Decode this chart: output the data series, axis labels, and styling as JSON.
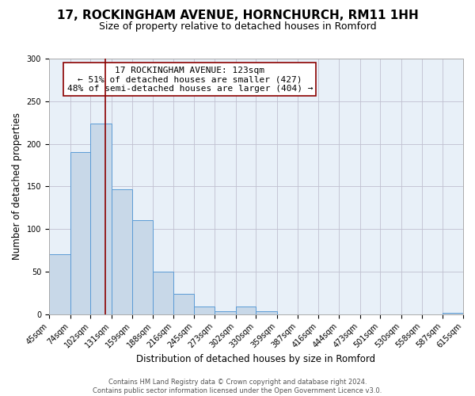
{
  "title": "17, ROCKINGHAM AVENUE, HORNCHURCH, RM11 1HH",
  "subtitle": "Size of property relative to detached houses in Romford",
  "xlabel": "Distribution of detached houses by size in Romford",
  "ylabel": "Number of detached properties",
  "bar_color": "#c8d8e8",
  "bar_edge_color": "#5b9bd5",
  "background_color": "#ffffff",
  "grid_color": "#c0c0d0",
  "vline_color": "#8b0000",
  "vline_x": 123,
  "annotation_line1": "17 ROCKINGHAM AVENUE: 123sqm",
  "annotation_line2": "← 51% of detached houses are smaller (427)",
  "annotation_line3": "48% of semi-detached houses are larger (404) →",
  "annotation_box_color": "#ffffff",
  "annotation_box_edge": "#8b0000",
  "bin_edges": [
    45,
    74,
    102,
    131,
    159,
    188,
    216,
    245,
    273,
    302,
    330,
    359,
    387,
    416,
    444,
    473,
    501,
    530,
    558,
    587,
    615
  ],
  "bar_heights": [
    70,
    190,
    224,
    147,
    110,
    50,
    24,
    9,
    4,
    9,
    4,
    0,
    0,
    0,
    0,
    0,
    0,
    0,
    0,
    2
  ],
  "tick_labels": [
    "45sqm",
    "74sqm",
    "102sqm",
    "131sqm",
    "159sqm",
    "188sqm",
    "216sqm",
    "245sqm",
    "273sqm",
    "302sqm",
    "330sqm",
    "359sqm",
    "387sqm",
    "416sqm",
    "444sqm",
    "473sqm",
    "501sqm",
    "530sqm",
    "558sqm",
    "587sqm",
    "615sqm"
  ],
  "ylim": [
    0,
    300
  ],
  "yticks": [
    0,
    50,
    100,
    150,
    200,
    250,
    300
  ],
  "footer_line1": "Contains HM Land Registry data © Crown copyright and database right 2024.",
  "footer_line2": "Contains public sector information licensed under the Open Government Licence v3.0.",
  "title_fontsize": 11,
  "subtitle_fontsize": 9,
  "axis_label_fontsize": 8.5,
  "tick_fontsize": 7,
  "annotation_fontsize": 8,
  "footer_fontsize": 6
}
